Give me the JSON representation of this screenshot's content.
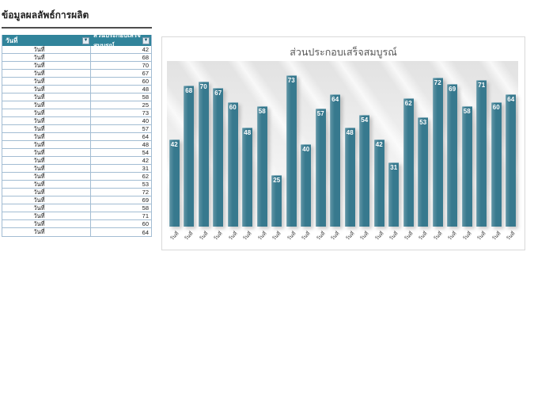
{
  "page_title": "ข้อมูลผลลัพธ์การผลิต",
  "table": {
    "columns": [
      "วันที่",
      "ส่วนประกอบเสร็จสมบูรณ์"
    ],
    "filter_glyph": "▼",
    "rows": [
      {
        "date": "วันที่",
        "value": 42
      },
      {
        "date": "วันที่",
        "value": 68
      },
      {
        "date": "วันที่",
        "value": 70
      },
      {
        "date": "วันที่",
        "value": 67
      },
      {
        "date": "วันที่",
        "value": 60
      },
      {
        "date": "วันที่",
        "value": 48
      },
      {
        "date": "วันที่",
        "value": 58
      },
      {
        "date": "วันที่",
        "value": 25
      },
      {
        "date": "วันที่",
        "value": 73
      },
      {
        "date": "วันที่",
        "value": 40
      },
      {
        "date": "วันที่",
        "value": 57
      },
      {
        "date": "วันที่",
        "value": 64
      },
      {
        "date": "วันที่",
        "value": 48
      },
      {
        "date": "วันที่",
        "value": 54
      },
      {
        "date": "วันที่",
        "value": 42
      },
      {
        "date": "วันที่",
        "value": 31
      },
      {
        "date": "วันที่",
        "value": 62
      },
      {
        "date": "วันที่",
        "value": 53
      },
      {
        "date": "วันที่",
        "value": 72
      },
      {
        "date": "วันที่",
        "value": 69
      },
      {
        "date": "วันที่",
        "value": 58
      },
      {
        "date": "วันที่",
        "value": 71
      },
      {
        "date": "วันที่",
        "value": 60
      },
      {
        "date": "วันที่",
        "value": 64
      }
    ]
  },
  "chart_data": {
    "type": "bar",
    "title": "ส่วนประกอบเสร็จสมบูรณ์",
    "categories": [
      "วันที่",
      "วันที่",
      "วันที่",
      "วันที่",
      "วันที่",
      "วันที่",
      "วันที่",
      "วันที่",
      "วันที่",
      "วันที่",
      "วันที่",
      "วันที่",
      "วันที่",
      "วันที่",
      "วันที่",
      "วันที่",
      "วันที่",
      "วันที่",
      "วันที่",
      "วันที่",
      "วันที่",
      "วันที่",
      "วันที่",
      "วันที่"
    ],
    "values": [
      42,
      68,
      70,
      67,
      60,
      48,
      58,
      25,
      73,
      40,
      57,
      64,
      48,
      54,
      42,
      31,
      62,
      53,
      72,
      69,
      58,
      71,
      60,
      64
    ],
    "xlabel": "",
    "ylabel": "",
    "ylim": [
      0,
      80
    ],
    "grid": false,
    "legend": "none",
    "data_labels": "inside-end",
    "bar_color": "#37798E",
    "label_color": "#FFFFFF"
  },
  "colors": {
    "accent": "#31849B",
    "bar": "#37798E",
    "table_grid": "#A3BDD3"
  }
}
